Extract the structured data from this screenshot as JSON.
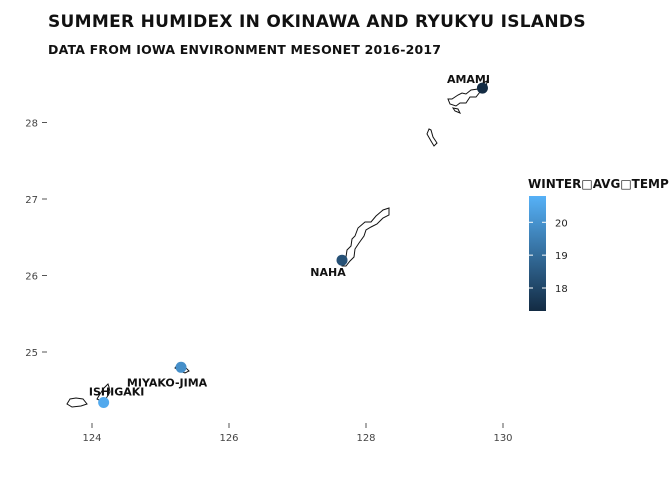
{
  "title": "SUMMER HUMIDEX IN OKINAWA AND RYUKYU ISLANDS",
  "subtitle": "DATA FROM IOWA ENVIRONMENT MESONET 2016-2017",
  "chart_data": {
    "type": "scatter",
    "map": "Okinawa and Ryukyu Islands",
    "x_ticks": [
      124,
      126,
      128,
      130
    ],
    "y_ticks": [
      25,
      26,
      27,
      28
    ],
    "xlim": [
      123.7,
      130.9
    ],
    "ylim": [
      24.0,
      28.9
    ],
    "grid": false,
    "points": [
      {
        "label": "AMAMI",
        "lon": 129.7,
        "lat": 28.45,
        "winter_avg_temp": 17.3
      },
      {
        "label": "NAHA",
        "lon": 127.65,
        "lat": 26.2,
        "winter_avg_temp": 18.3
      },
      {
        "label": "MIYAKO-JIMA",
        "lon": 125.3,
        "lat": 24.8,
        "winter_avg_temp": 19.9
      },
      {
        "label": "ISHIGAKI",
        "lon": 124.17,
        "lat": 24.34,
        "winter_avg_temp": 20.6
      }
    ],
    "color_scale": {
      "title": "WINTER□AVG□TEMP",
      "ticks": [
        18,
        19,
        20
      ],
      "range": [
        17.3,
        20.8
      ],
      "low_color": "#132B43",
      "high_color": "#56B1F7",
      "legend_position": "right"
    }
  }
}
